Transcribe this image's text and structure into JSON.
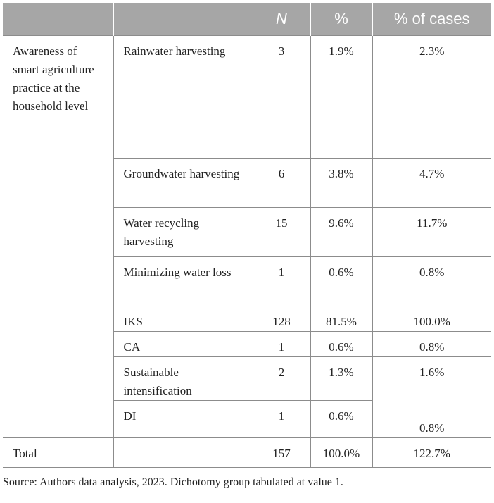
{
  "header": {
    "col0": "",
    "col1": "",
    "col2": "N",
    "col3": "%",
    "col4": "% of cases"
  },
  "group_label": "Awareness of smart agriculture practice at the household level",
  "rows": [
    {
      "label": "Rainwater harvesting",
      "n": "3",
      "pct": "1.9%",
      "cases": "2.3%"
    },
    {
      "label": "Groundwater harvesting",
      "n": "6",
      "pct": "3.8%",
      "cases": "4.7%"
    },
    {
      "label": "Water recycling harvesting",
      "n": "15",
      "pct": "9.6%",
      "cases": "11.7%"
    },
    {
      "label": "Minimizing water loss",
      "n": "1",
      "pct": "0.6%",
      "cases": "0.8%"
    },
    {
      "label": "IKS",
      "n": "128",
      "pct": "81.5%",
      "cases": "100.0%"
    },
    {
      "label": "CA",
      "n": "1",
      "pct": "0.6%",
      "cases": "0.8%"
    },
    {
      "label": "Sustainable intensification",
      "n": "2",
      "pct": "1.3%",
      "cases": "1.6%"
    },
    {
      "label": "DI",
      "n": "1",
      "pct": "0.6%",
      "cases": "0.8%"
    }
  ],
  "total": {
    "label": "Total",
    "n": "157",
    "pct": "100.0%",
    "cases": "122.7%"
  },
  "source_note": "Source: Authors data analysis, 2023. Dichotomy group tabulated at value 1."
}
